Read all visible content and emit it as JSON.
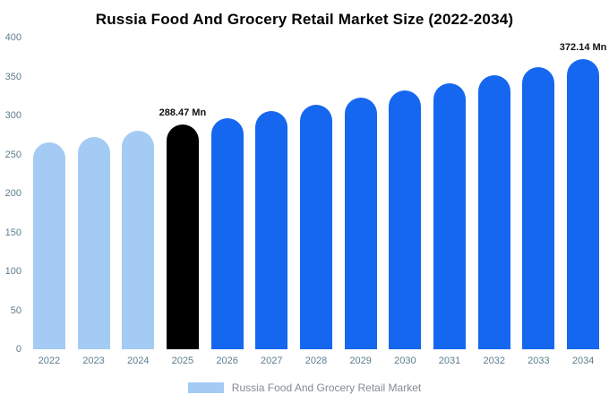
{
  "chart_data": {
    "type": "bar",
    "title": "Russia Food And Grocery Retail Market Size (2022-2034)",
    "categories": [
      "2022",
      "2023",
      "2024",
      "2025",
      "2026",
      "2027",
      "2028",
      "2029",
      "2030",
      "2031",
      "2032",
      "2033",
      "2034"
    ],
    "values": [
      264.98,
      272.59,
      280.42,
      288.47,
      296.75,
      305.27,
      314.03,
      323.04,
      332.31,
      341.85,
      351.66,
      361.76,
      372.14
    ],
    "unit": "Mn",
    "xlabel": "",
    "ylabel": "",
    "ylim": [
      0,
      400
    ],
    "yticks": [
      0,
      50,
      100,
      150,
      200,
      250,
      300,
      350,
      400
    ],
    "grid": false,
    "bar_groups": [
      "past",
      "past",
      "past",
      "current",
      "forecast",
      "forecast",
      "forecast",
      "forecast",
      "forecast",
      "forecast",
      "forecast",
      "forecast",
      "forecast"
    ],
    "colors": {
      "past": "#a4cbf4",
      "current": "#000000",
      "forecast": "#1667f0"
    },
    "annotations": [
      {
        "year": "2025",
        "text": "288.47 Mn"
      },
      {
        "year": "2034",
        "text": "372.14 Mn"
      }
    ],
    "legend": {
      "label": "Russia Food And Grocery Retail Market",
      "position": "bottom",
      "swatch_group": "past"
    }
  }
}
